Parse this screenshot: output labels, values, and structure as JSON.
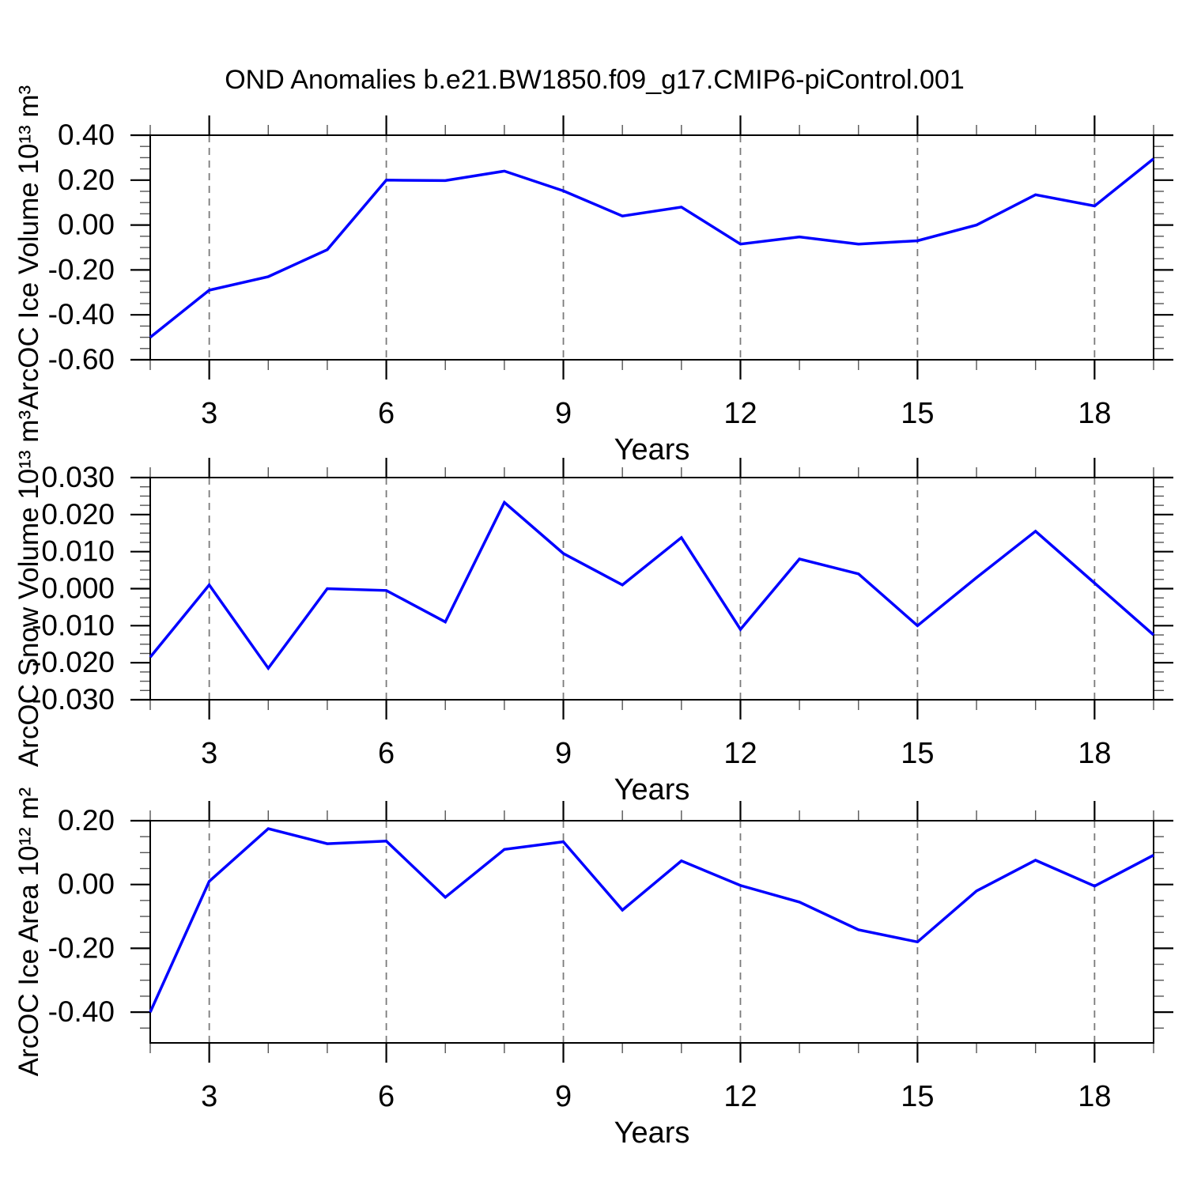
{
  "title": "OND Anomalies b.e21.BW1850.f09_g17.CMIP6-piControl.001",
  "chart_data": [
    {
      "type": "line",
      "id": "ice-volume",
      "ylabel": "ArcOC Ice Volume 10¹³ m³",
      "xlabel": "Years",
      "line_color": "#0000ff",
      "grid": "vertical-dashed",
      "x": [
        2,
        3,
        4,
        5,
        6,
        7,
        8,
        9,
        10,
        11,
        12,
        13,
        14,
        15,
        16,
        17,
        18,
        19
      ],
      "values": [
        -0.5,
        -0.29,
        -0.23,
        -0.11,
        0.2,
        0.198,
        0.24,
        0.152,
        0.04,
        0.08,
        -0.085,
        -0.053,
        -0.085,
        -0.07,
        0.0,
        0.135,
        0.085,
        0.295
      ],
      "xticks": [
        3,
        6,
        9,
        12,
        15,
        18
      ],
      "xlim": [
        2,
        19
      ],
      "ylim": [
        -0.6,
        0.4
      ],
      "ytick_values": [
        0.4,
        0.2,
        0.0,
        -0.2,
        -0.4,
        -0.6
      ],
      "ytick_labels": [
        "0.40",
        "0.20",
        "0.00",
        "-0.20",
        "-0.40",
        "-0.60"
      ],
      "yminor_step": 0.05
    },
    {
      "type": "line",
      "id": "snow-volume",
      "ylabel": "ArcOC Snow Volume 10¹³ m³",
      "xlabel": "Years",
      "line_color": "#0000ff",
      "grid": "vertical-dashed",
      "x": [
        2,
        3,
        4,
        5,
        6,
        7,
        8,
        9,
        10,
        11,
        12,
        13,
        14,
        15,
        16,
        17,
        18,
        19
      ],
      "values": [
        -0.0185,
        0.001,
        -0.0215,
        0.0,
        -0.0005,
        -0.009,
        0.0233,
        0.0095,
        0.001,
        0.0138,
        -0.011,
        0.008,
        0.004,
        -0.01,
        0.003,
        0.0155,
        0.0015,
        -0.0125
      ],
      "xticks": [
        3,
        6,
        9,
        12,
        15,
        18
      ],
      "xlim": [
        2,
        19
      ],
      "ylim": [
        -0.03,
        0.03
      ],
      "ytick_values": [
        0.03,
        0.02,
        0.01,
        0.0,
        -0.01,
        -0.02,
        -0.03
      ],
      "ytick_labels": [
        "0.030",
        "0.020",
        "0.010",
        "0.000",
        "-0.010",
        "-0.020",
        "-0.030"
      ],
      "yminor_step": 0.0025
    },
    {
      "type": "line",
      "id": "ice-area",
      "ylabel": "ArcOC Ice Area 10¹² m²",
      "xlabel": "Years",
      "line_color": "#0000ff",
      "grid": "vertical-dashed",
      "x": [
        2,
        3,
        4,
        5,
        6,
        7,
        8,
        9,
        10,
        11,
        12,
        13,
        14,
        15,
        16,
        17,
        18,
        19
      ],
      "values": [
        -0.4,
        0.01,
        0.175,
        0.128,
        0.136,
        -0.04,
        0.11,
        0.134,
        -0.08,
        0.074,
        -0.003,
        -0.055,
        -0.142,
        -0.18,
        -0.02,
        0.076,
        -0.005,
        0.092
      ],
      "xticks": [
        3,
        6,
        9,
        12,
        15,
        18
      ],
      "xlim": [
        2,
        19
      ],
      "ylim": [
        -0.4964,
        0.2
      ],
      "ytick_values": [
        0.2,
        0.0,
        -0.2,
        -0.4
      ],
      "ytick_labels": [
        "0.20",
        "0.00",
        "-0.20",
        "-0.40"
      ],
      "yminor_step": 0.05
    }
  ]
}
